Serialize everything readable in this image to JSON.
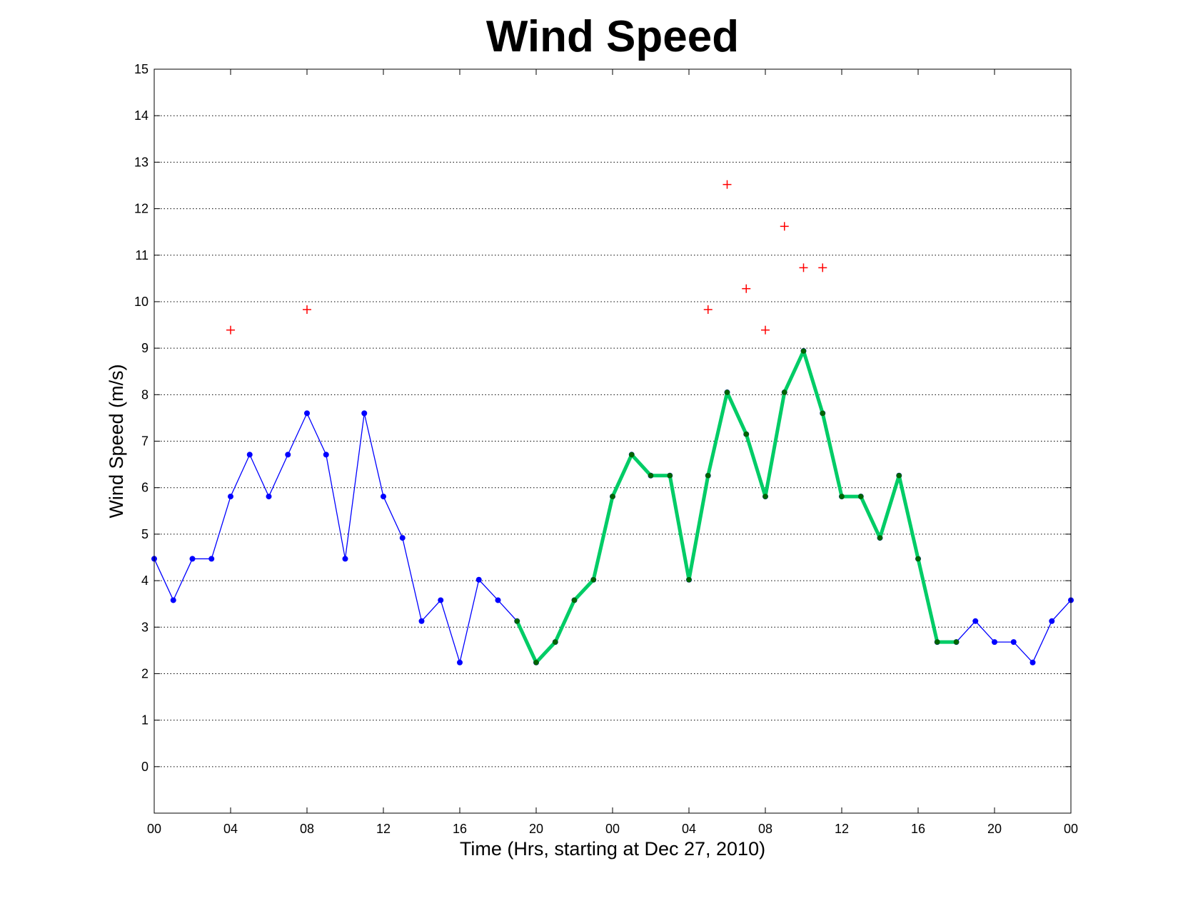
{
  "chart_data": {
    "type": "line",
    "title": "Wind Speed",
    "xlabel": "Time (Hrs, starting at Dec 27, 2010)",
    "ylabel": "Wind Speed (m/s)",
    "x_unit": "hours",
    "xlim": [
      0,
      48
    ],
    "ylim": [
      -1,
      15
    ],
    "yticks": [
      0,
      1,
      2,
      3,
      4,
      5,
      6,
      7,
      8,
      9,
      10,
      11,
      12,
      13,
      14,
      15
    ],
    "xtick_values": [
      0,
      4,
      8,
      12,
      16,
      20,
      24,
      28,
      32,
      36,
      40,
      44,
      48
    ],
    "xtick_labels": [
      "00",
      "04",
      "08",
      "12",
      "16",
      "20",
      "00",
      "04",
      "08",
      "12",
      "16",
      "20",
      "00"
    ],
    "grid": "horizontal dotted",
    "legend": "none",
    "colors": {
      "blue_series": "#0000ff",
      "green_series": "#00cc66",
      "green_markers": "#006400",
      "red_markers": "#ff0000"
    },
    "series": [
      {
        "style": "thin blue line with dot markers",
        "x": [
          0,
          1,
          2,
          3,
          4,
          5,
          6,
          7,
          8,
          9,
          10,
          11,
          12,
          13,
          14,
          15,
          16,
          17,
          18,
          19,
          20,
          21,
          22,
          23,
          24,
          25,
          26,
          27,
          28,
          29,
          30,
          31,
          32,
          33,
          34,
          35,
          36,
          37,
          38,
          39,
          40,
          41,
          42,
          43,
          44,
          45,
          46,
          47,
          48
        ],
        "y": [
          4.47,
          3.58,
          4.47,
          4.47,
          5.81,
          6.71,
          5.81,
          6.71,
          7.6,
          6.71,
          4.47,
          7.6,
          5.81,
          4.92,
          3.13,
          3.58,
          2.24,
          4.02,
          3.58,
          3.13,
          2.24,
          2.68,
          3.58,
          4.02,
          5.81,
          6.71,
          6.26,
          6.26,
          4.02,
          6.26,
          8.05,
          7.15,
          5.81,
          8.05,
          8.94,
          7.6,
          5.81,
          5.81,
          4.92,
          6.26,
          4.47,
          2.68,
          2.68,
          3.13,
          2.68,
          2.68,
          2.24,
          3.13,
          3.58
        ]
      },
      {
        "style": "thick green line with dark green dot markers",
        "x": [
          19,
          20,
          21,
          22,
          23,
          24,
          25,
          26,
          27,
          28,
          29,
          30,
          31,
          32,
          33,
          34,
          35,
          36,
          37,
          38,
          39,
          40,
          41,
          42
        ],
        "y": [
          3.13,
          2.24,
          2.68,
          3.58,
          4.02,
          5.81,
          6.71,
          6.26,
          6.26,
          4.02,
          6.26,
          8.05,
          7.15,
          5.81,
          8.05,
          8.94,
          7.6,
          5.81,
          5.81,
          4.92,
          6.26,
          4.47,
          2.68,
          2.68
        ]
      },
      {
        "style": "red plus markers",
        "x": [
          4,
          8,
          29,
          30,
          31,
          32,
          33,
          34,
          35
        ],
        "y": [
          9.39,
          9.83,
          9.83,
          12.52,
          10.28,
          9.39,
          11.62,
          10.73,
          10.73
        ]
      }
    ]
  }
}
